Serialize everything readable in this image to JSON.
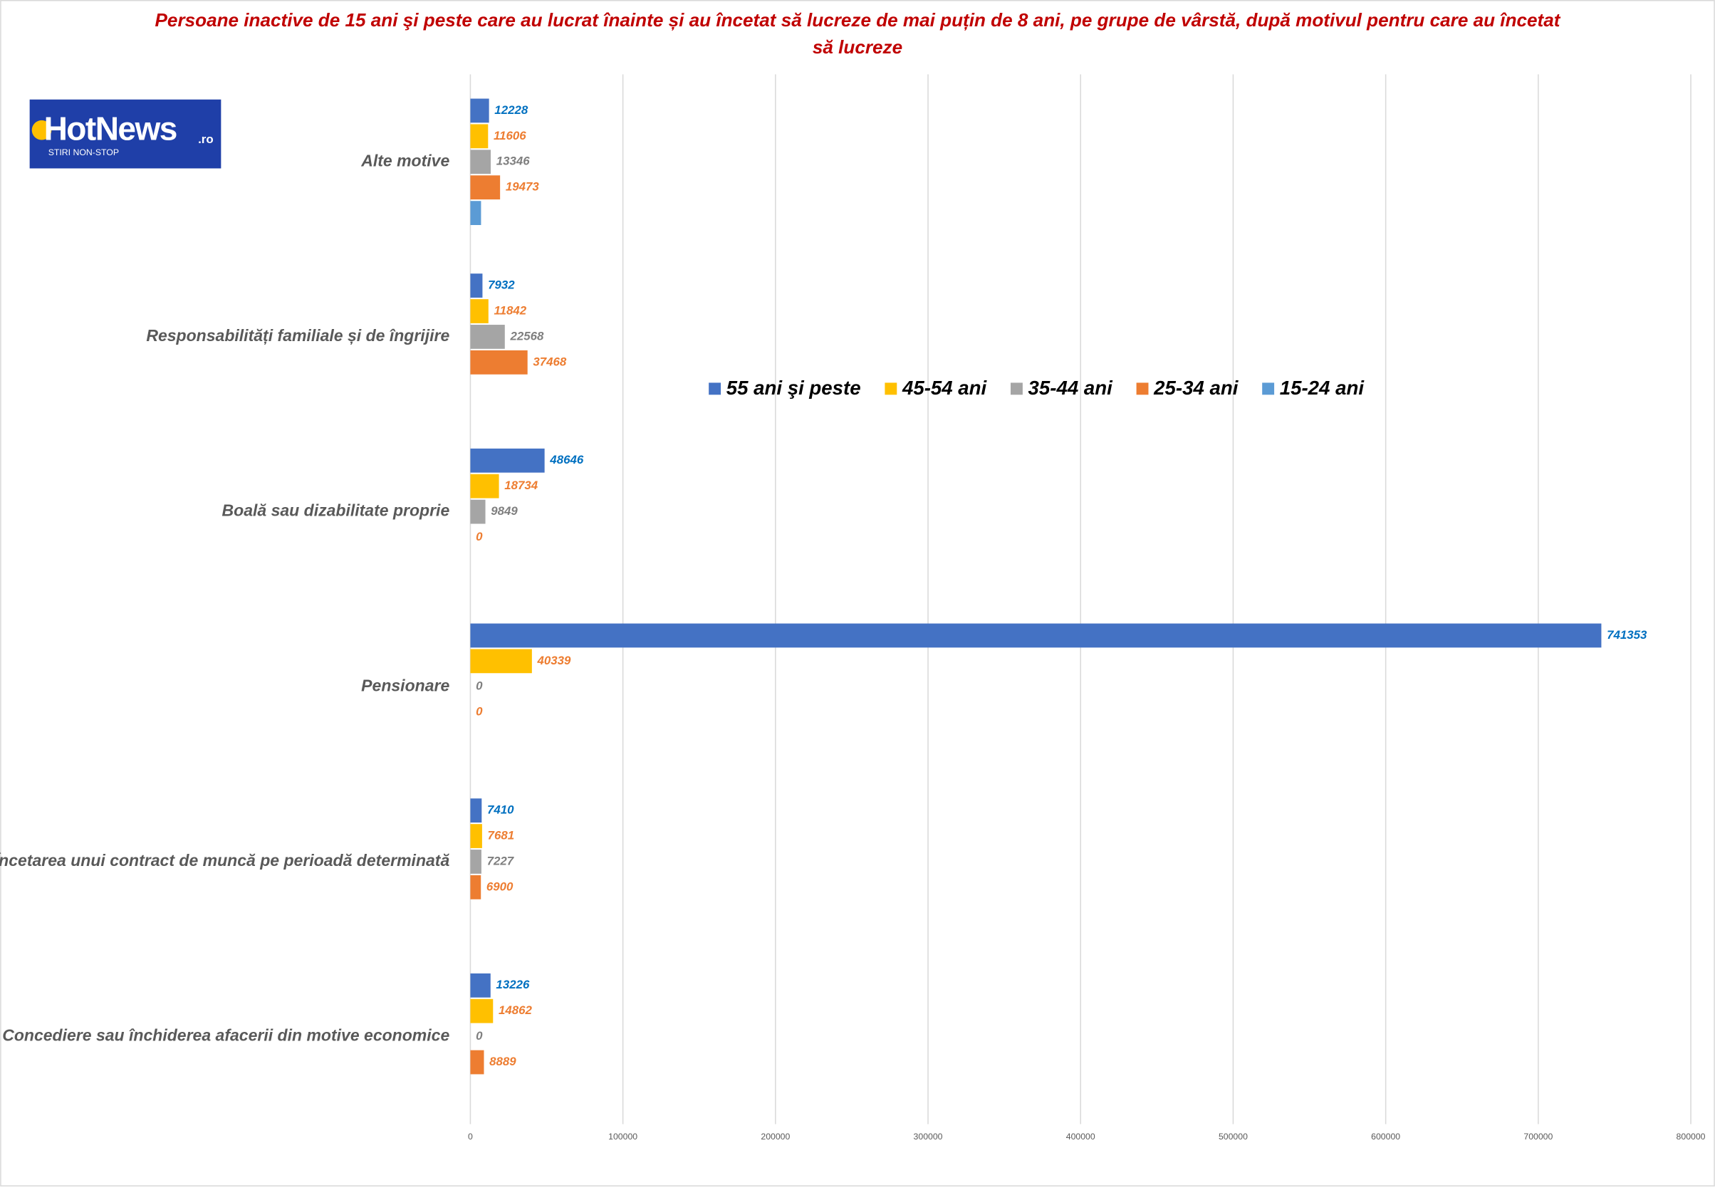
{
  "logo": {
    "name": "HotNews",
    "suffix": ".ro",
    "tagline": "STIRI NON-STOP"
  },
  "chart_data": {
    "type": "hbar",
    "title": "Persoane inactive de 15 ani şi peste care au lucrat înainte și au încetat să lucreze de mai puțin de 8 ani, pe grupe de vârstă, după motivul pentru care au încetat să lucreze",
    "categories": [
      "Alte motive",
      "Responsabilități familiale și de îngrijire",
      "Boală sau dizabilitate proprie",
      "Pensionare",
      "Încetarea unui contract de muncă pe perioadă determinată",
      "Concediere sau închiderea afacerii din motive economice"
    ],
    "series": [
      {
        "name": "55 ani şi peste",
        "color": "#4472c4",
        "label_color": "#0070c0",
        "data_labels": true,
        "values": [
          12228,
          7932,
          48646,
          741353,
          7410,
          13226
        ]
      },
      {
        "name": "45-54 ani",
        "color": "#ffc000",
        "label_color": "#ed7d31",
        "data_labels": true,
        "values": [
          11606,
          11842,
          18734,
          40339,
          7681,
          14862
        ]
      },
      {
        "name": "35-44 ani",
        "color": "#a5a5a5",
        "label_color": "#7f7f7f",
        "data_labels": true,
        "values": [
          13346,
          22568,
          9849,
          0,
          7227,
          0
        ]
      },
      {
        "name": "25-34 ani",
        "color": "#ed7d31",
        "label_color": "#ed7d31",
        "data_labels": true,
        "values": [
          19473,
          37468,
          0,
          0,
          6900,
          8889
        ]
      },
      {
        "name": "15-24 ani",
        "color": "#5b9bd5",
        "label_color": "#5b9bd5",
        "data_labels": false,
        "values": [
          7000,
          null,
          null,
          null,
          null,
          null
        ]
      }
    ],
    "xlim": [
      0,
      800000
    ],
    "xticks": [
      0,
      100000,
      200000,
      300000,
      400000,
      500000,
      600000,
      700000,
      800000
    ],
    "grid": true,
    "legend": "inside"
  }
}
